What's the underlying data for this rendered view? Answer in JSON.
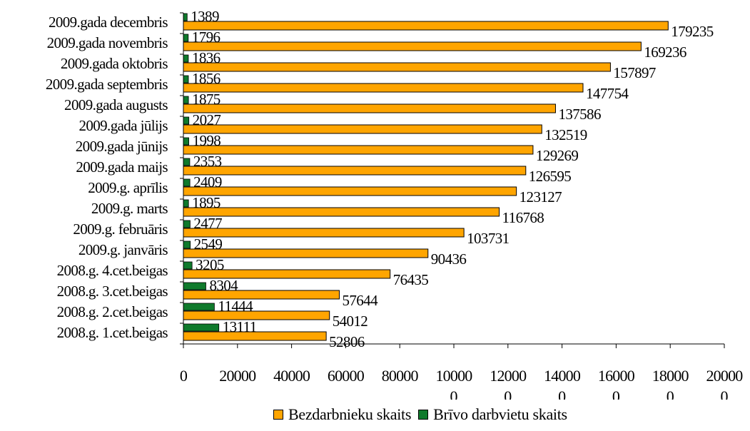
{
  "colors": {
    "unemployed": "#FFA500",
    "vacancies": "#0F7A2C",
    "axis": "#000000"
  },
  "chart_data": {
    "type": "bar",
    "orientation": "horizontal",
    "categories": [
      "2009.gada decembris",
      "2009.gada novembris",
      "2009.gada oktobris",
      "2009.gada septembris",
      "2009.gada augusts",
      "2009.gada jūlijs",
      "2009.gada jūnijs",
      "2009.gada maijs",
      "2009.g. aprīlis",
      "2009.g. marts",
      "2009.g. februāris",
      "2009.g. janvāris",
      "2008.g. 4.cet.beigas",
      "2008.g. 3.cet.beigas",
      "2008.g. 2.cet.beigas",
      "2008.g. 1.cet.beigas"
    ],
    "series": [
      {
        "name": "Bezdarbnieku skaits",
        "values": [
          179235,
          169236,
          157897,
          147754,
          137586,
          132519,
          129269,
          126595,
          123127,
          116768,
          103731,
          90436,
          76435,
          57644,
          54012,
          52806
        ]
      },
      {
        "name": "Brīvo darbvietu skaits",
        "values": [
          1389,
          1796,
          1836,
          1856,
          1875,
          2027,
          1998,
          2353,
          2409,
          1895,
          2477,
          2549,
          3205,
          8304,
          11444,
          13111
        ]
      }
    ],
    "xlim": [
      0,
      200000
    ],
    "xticks": [
      [
        "0",
        ""
      ],
      [
        "20000",
        ""
      ],
      [
        "40000",
        ""
      ],
      [
        "60000",
        ""
      ],
      [
        "80000",
        ""
      ],
      [
        "10000",
        "0"
      ],
      [
        "12000",
        "0"
      ],
      [
        "14000",
        "0"
      ],
      [
        "16000",
        "0"
      ],
      [
        "18000",
        "0"
      ],
      [
        "20000",
        "0"
      ]
    ],
    "legend_position": "bottom",
    "grid": false
  }
}
